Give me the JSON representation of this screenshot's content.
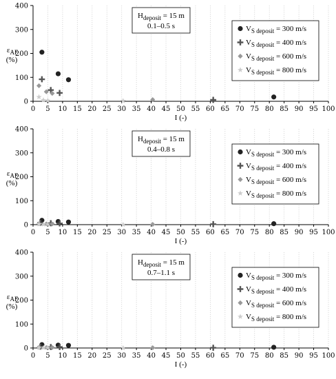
{
  "chart_data": [
    {
      "type": "scatter",
      "xlabel": "I (-)",
      "ylabel_main": "ε",
      "ylabel_sub": "AF",
      "ylabel_unit": "(%)",
      "xlim": [
        0,
        100
      ],
      "ylim": [
        0,
        400
      ],
      "xticks": [
        0,
        5,
        10,
        15,
        20,
        25,
        30,
        35,
        40,
        45,
        50,
        55,
        60,
        65,
        70,
        75,
        80,
        85,
        90,
        95,
        100
      ],
      "yticks": [
        0,
        100,
        200,
        300,
        400
      ],
      "annotation": {
        "line1_main": "H",
        "line1_sub": "deposit",
        "line1_tail": " = 15 m",
        "line2": "0.1–0.5 s"
      },
      "series": [
        {
          "name_main": "V",
          "name_sub": "S deposit",
          "name_tail": " = 300 m/s",
          "marker": "circle",
          "color": "#222222",
          "points": [
            [
              3,
              205
            ],
            [
              8.5,
              115
            ],
            [
              12,
              90
            ],
            [
              81.5,
              18
            ]
          ]
        },
        {
          "name_main": "V",
          "name_sub": "S deposit",
          "name_tail": " = 400 m/s",
          "marker": "plus",
          "color": "#555555",
          "points": [
            [
              3,
              92
            ],
            [
              6,
              47
            ],
            [
              9,
              35
            ],
            [
              61,
              6
            ]
          ]
        },
        {
          "name_main": "V",
          "name_sub": "S deposit",
          "name_tail": " = 600 m/s",
          "marker": "diamond",
          "color": "#999999",
          "points": [
            [
              2,
              65
            ],
            [
              4.5,
              40
            ],
            [
              6.5,
              33
            ],
            [
              40.5,
              7
            ]
          ]
        },
        {
          "name_main": "V",
          "name_sub": "S deposit",
          "name_tail": " = 800 m/s",
          "marker": "star",
          "color": "#cccccc",
          "points": [
            [
              2,
              18
            ],
            [
              3.5,
              5
            ],
            [
              5,
              3
            ],
            [
              30.5,
              2
            ]
          ]
        }
      ]
    },
    {
      "type": "scatter",
      "xlabel": "I (-)",
      "ylabel_main": "ε",
      "ylabel_sub": "AF",
      "ylabel_unit": "(%)",
      "xlim": [
        0,
        100
      ],
      "ylim": [
        0,
        400
      ],
      "xticks": [
        0,
        5,
        10,
        15,
        20,
        25,
        30,
        35,
        40,
        45,
        50,
        55,
        60,
        65,
        70,
        75,
        80,
        85,
        90,
        95,
        100
      ],
      "yticks": [
        0,
        100,
        200,
        300,
        400
      ],
      "annotation": {
        "line1_main": "H",
        "line1_sub": "deposit",
        "line1_tail": " = 15 m",
        "line2": "0.4–0.8 s"
      },
      "series": [
        {
          "name_main": "V",
          "name_sub": "S deposit",
          "name_tail": " = 300 m/s",
          "marker": "circle",
          "color": "#222222",
          "points": [
            [
              3,
              18
            ],
            [
              8.5,
              13
            ],
            [
              12,
              11
            ],
            [
              81.5,
              4
            ]
          ]
        },
        {
          "name_main": "V",
          "name_sub": "S deposit",
          "name_tail": " = 400 m/s",
          "marker": "plus",
          "color": "#555555",
          "points": [
            [
              2.5,
              8
            ],
            [
              6,
              6
            ],
            [
              9,
              5
            ],
            [
              61,
              2
            ]
          ]
        },
        {
          "name_main": "V",
          "name_sub": "S deposit",
          "name_tail": " = 600 m/s",
          "marker": "diamond",
          "color": "#999999",
          "points": [
            [
              2,
              4
            ],
            [
              4.5,
              3
            ],
            [
              6.5,
              3
            ],
            [
              40.5,
              1
            ]
          ]
        },
        {
          "name_main": "V",
          "name_sub": "S deposit",
          "name_tail": " = 800 m/s",
          "marker": "star",
          "color": "#cccccc",
          "points": [
            [
              2,
              2
            ],
            [
              3.5,
              1
            ],
            [
              5,
              1
            ],
            [
              30.5,
              0
            ]
          ]
        }
      ]
    },
    {
      "type": "scatter",
      "xlabel": "I (-)",
      "ylabel_main": "ε",
      "ylabel_sub": "AF",
      "ylabel_unit": "(%)",
      "xlim": [
        0,
        100
      ],
      "ylim": [
        0,
        400
      ],
      "xticks": [
        0,
        5,
        10,
        15,
        20,
        25,
        30,
        35,
        40,
        45,
        50,
        55,
        60,
        65,
        70,
        75,
        80,
        85,
        90,
        95,
        100
      ],
      "yticks": [
        0,
        100,
        200,
        300,
        400
      ],
      "annotation": {
        "line1_main": "H",
        "line1_sub": "deposit",
        "line1_tail": " = 15 m",
        "line2": "0.7–1.1 s"
      },
      "series": [
        {
          "name_main": "V",
          "name_sub": "S deposit",
          "name_tail": " = 300 m/s",
          "marker": "circle",
          "color": "#222222",
          "points": [
            [
              3,
              14
            ],
            [
              8.5,
              12
            ],
            [
              12,
              11
            ],
            [
              81.5,
              3
            ]
          ]
        },
        {
          "name_main": "V",
          "name_sub": "S deposit",
          "name_tail": " = 400 m/s",
          "marker": "plus",
          "color": "#555555",
          "points": [
            [
              2.5,
              5
            ],
            [
              6,
              4
            ],
            [
              9,
              4
            ],
            [
              61,
              1
            ]
          ]
        },
        {
          "name_main": "V",
          "name_sub": "S deposit",
          "name_tail": " = 600 m/s",
          "marker": "diamond",
          "color": "#999999",
          "points": [
            [
              2,
              3
            ],
            [
              4.5,
              2
            ],
            [
              6.5,
              2
            ],
            [
              40.5,
              1
            ]
          ]
        },
        {
          "name_main": "V",
          "name_sub": "S deposit",
          "name_tail": " = 800 m/s",
          "marker": "star",
          "color": "#cccccc",
          "points": [
            [
              2,
              1
            ],
            [
              3.5,
              1
            ],
            [
              5,
              1
            ],
            [
              30.5,
              0
            ]
          ]
        }
      ]
    }
  ]
}
